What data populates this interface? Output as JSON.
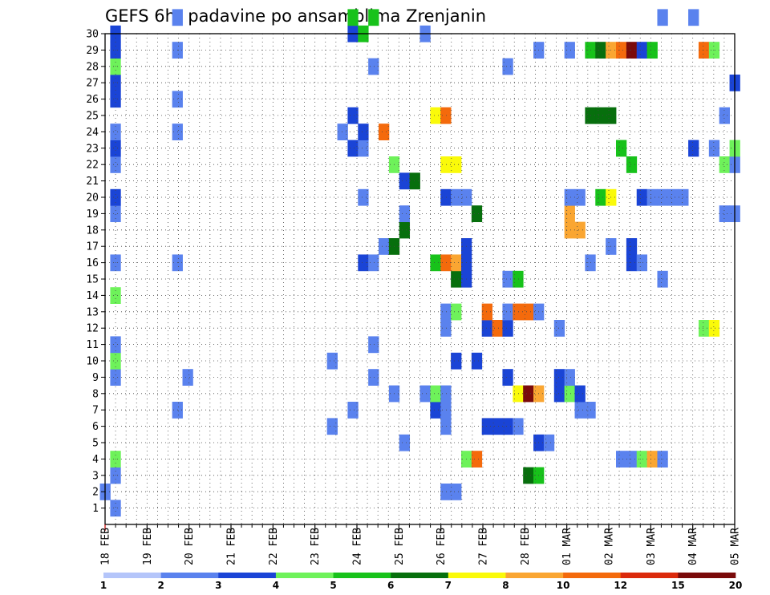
{
  "chart_data": {
    "type": "heatmap",
    "title": "GEFS 6hr padavine po ansamblima Zrenjanin",
    "x_tick_labels": [
      "18 FEB",
      "19 FEB",
      "20 FEB",
      "21 FEB",
      "22 FEB",
      "23 FEB",
      "24 FEB",
      "25 FEB",
      "26 FEB",
      "27 FEB",
      "28 FEB",
      "01 MAR",
      "02 MAR",
      "03 MAR",
      "04 MAR",
      "05 MAR"
    ],
    "y_tick_labels": [
      "1",
      "2",
      "3",
      "4",
      "5",
      "6",
      "7",
      "8",
      "9",
      "10",
      "11",
      "12",
      "13",
      "14",
      "15",
      "16",
      "17",
      "18",
      "19",
      "20",
      "21",
      "22",
      "23",
      "24",
      "25",
      "26",
      "27",
      "28",
      "29",
      "30"
    ],
    "xlim_steps": [
      0,
      61
    ],
    "ylim": [
      0,
      30
    ],
    "grid": true,
    "colorbar": {
      "labels": [
        "1",
        "2",
        "3",
        "4",
        "5",
        "6",
        "7",
        "8",
        "10",
        "12",
        "15",
        "20"
      ],
      "colors": [
        "#b4c5fa",
        "#5a82ee",
        "#1a44d6",
        "#6ef25a",
        "#17c21a",
        "#076f0d",
        "#fafa0a",
        "#faa632",
        "#f46a0c",
        "#db2a0c",
        "#7a0a0a"
      ]
    },
    "cells": [
      [
        0,
        1,
        1
      ],
      [
        1,
        0,
        1
      ],
      [
        1,
        2,
        1
      ],
      [
        1,
        3,
        3
      ],
      [
        1,
        8,
        1
      ],
      [
        1,
        9,
        3
      ],
      [
        1,
        10,
        1
      ],
      [
        1,
        13,
        3
      ],
      [
        1,
        15,
        1
      ],
      [
        1,
        18,
        1
      ],
      [
        1,
        19,
        2
      ],
      [
        1,
        21,
        1
      ],
      [
        1,
        22,
        2
      ],
      [
        1,
        23,
        1
      ],
      [
        1,
        25,
        2
      ],
      [
        1,
        26,
        2
      ],
      [
        1,
        27,
        3
      ],
      [
        1,
        28,
        2
      ],
      [
        1,
        29,
        2
      ],
      [
        7,
        6,
        1
      ],
      [
        7,
        15,
        1
      ],
      [
        7,
        23,
        1
      ],
      [
        7,
        25,
        1
      ],
      [
        7,
        28,
        1
      ],
      [
        7,
        30,
        1
      ],
      [
        8,
        8,
        1
      ],
      [
        22,
        5,
        1
      ],
      [
        22,
        9,
        1
      ],
      [
        23,
        23,
        1
      ],
      [
        24,
        6,
        1
      ],
      [
        24,
        22,
        2
      ],
      [
        24,
        24,
        2
      ],
      [
        24,
        29,
        2
      ],
      [
        24,
        30,
        4
      ],
      [
        25,
        15,
        2
      ],
      [
        25,
        19,
        1
      ],
      [
        25,
        22,
        1
      ],
      [
        25,
        23,
        2
      ],
      [
        25,
        29,
        4
      ],
      [
        26,
        8,
        1
      ],
      [
        26,
        10,
        1
      ],
      [
        26,
        15,
        1
      ],
      [
        26,
        27,
        1
      ],
      [
        26,
        30,
        4
      ],
      [
        27,
        16,
        1
      ],
      [
        27,
        23,
        8
      ],
      [
        28,
        7,
        1
      ],
      [
        28,
        16,
        5
      ],
      [
        28,
        21,
        3
      ],
      [
        29,
        4,
        1
      ],
      [
        29,
        17,
        5
      ],
      [
        29,
        18,
        1
      ],
      [
        29,
        20,
        2
      ],
      [
        30,
        20,
        5
      ],
      [
        31,
        7,
        1
      ],
      [
        31,
        29,
        1
      ],
      [
        32,
        6,
        2
      ],
      [
        32,
        7,
        3
      ],
      [
        32,
        15,
        4
      ],
      [
        32,
        24,
        6
      ],
      [
        33,
        1,
        1
      ],
      [
        33,
        5,
        1
      ],
      [
        33,
        6,
        1
      ],
      [
        33,
        7,
        1
      ],
      [
        33,
        11,
        1
      ],
      [
        33,
        12,
        1
      ],
      [
        33,
        15,
        8
      ],
      [
        33,
        19,
        2
      ],
      [
        33,
        21,
        6
      ],
      [
        33,
        24,
        8
      ],
      [
        34,
        1,
        1
      ],
      [
        34,
        9,
        2
      ],
      [
        34,
        12,
        3
      ],
      [
        34,
        14,
        5
      ],
      [
        34,
        15,
        7
      ],
      [
        34,
        19,
        1
      ],
      [
        34,
        21,
        6
      ],
      [
        35,
        3,
        3
      ],
      [
        35,
        14,
        2
      ],
      [
        35,
        15,
        2
      ],
      [
        35,
        16,
        2
      ],
      [
        35,
        19,
        1
      ],
      [
        36,
        3,
        8
      ],
      [
        36,
        9,
        2
      ],
      [
        36,
        18,
        5
      ],
      [
        37,
        5,
        2
      ],
      [
        37,
        11,
        2
      ],
      [
        37,
        12,
        8
      ],
      [
        38,
        5,
        2
      ],
      [
        38,
        11,
        8
      ],
      [
        39,
        5,
        2
      ],
      [
        39,
        8,
        2
      ],
      [
        39,
        11,
        2
      ],
      [
        39,
        12,
        1
      ],
      [
        39,
        14,
        1
      ],
      [
        39,
        27,
        1
      ],
      [
        40,
        5,
        1
      ],
      [
        40,
        7,
        6
      ],
      [
        40,
        12,
        8
      ],
      [
        40,
        14,
        4
      ],
      [
        41,
        2,
        5
      ],
      [
        41,
        7,
        10
      ],
      [
        41,
        12,
        8
      ],
      [
        42,
        2,
        4
      ],
      [
        42,
        4,
        2
      ],
      [
        42,
        7,
        7
      ],
      [
        42,
        12,
        1
      ],
      [
        42,
        28,
        1
      ],
      [
        43,
        4,
        1
      ],
      [
        44,
        7,
        2
      ],
      [
        44,
        8,
        2
      ],
      [
        44,
        11,
        1
      ],
      [
        45,
        7,
        3
      ],
      [
        45,
        8,
        1
      ],
      [
        45,
        17,
        7
      ],
      [
        45,
        18,
        7
      ],
      [
        45,
        19,
        1
      ],
      [
        45,
        28,
        1
      ],
      [
        46,
        6,
        1
      ],
      [
        46,
        7,
        2
      ],
      [
        46,
        17,
        7
      ],
      [
        46,
        19,
        1
      ],
      [
        47,
        6,
        1
      ],
      [
        47,
        15,
        1
      ],
      [
        47,
        24,
        5
      ],
      [
        47,
        28,
        4
      ],
      [
        48,
        19,
        4
      ],
      [
        48,
        24,
        5
      ],
      [
        48,
        28,
        5
      ],
      [
        49,
        16,
        1
      ],
      [
        49,
        19,
        6
      ],
      [
        49,
        24,
        5
      ],
      [
        49,
        28,
        7
      ],
      [
        50,
        3,
        1
      ],
      [
        50,
        22,
        4
      ],
      [
        50,
        28,
        8
      ],
      [
        51,
        3,
        1
      ],
      [
        51,
        15,
        2
      ],
      [
        51,
        16,
        2
      ],
      [
        51,
        21,
        4
      ],
      [
        51,
        28,
        10
      ],
      [
        52,
        3,
        3
      ],
      [
        52,
        15,
        1
      ],
      [
        52,
        19,
        2
      ],
      [
        52,
        28,
        2
      ],
      [
        53,
        3,
        7
      ],
      [
        53,
        19,
        1
      ],
      [
        53,
        28,
        4
      ],
      [
        54,
        3,
        1
      ],
      [
        54,
        14,
        1
      ],
      [
        54,
        19,
        1
      ],
      [
        54,
        30,
        1
      ],
      [
        55,
        19,
        1
      ],
      [
        56,
        19,
        1
      ],
      [
        57,
        22,
        2
      ],
      [
        57,
        30,
        1
      ],
      [
        58,
        11,
        3
      ],
      [
        58,
        28,
        8
      ],
      [
        59,
        11,
        6
      ],
      [
        59,
        22,
        1
      ],
      [
        59,
        28,
        3
      ],
      [
        60,
        18,
        1
      ],
      [
        60,
        21,
        3
      ],
      [
        60,
        24,
        1
      ],
      [
        61,
        18,
        1
      ],
      [
        61,
        21,
        1
      ],
      [
        61,
        22,
        3
      ],
      [
        61,
        26,
        2
      ]
    ]
  }
}
